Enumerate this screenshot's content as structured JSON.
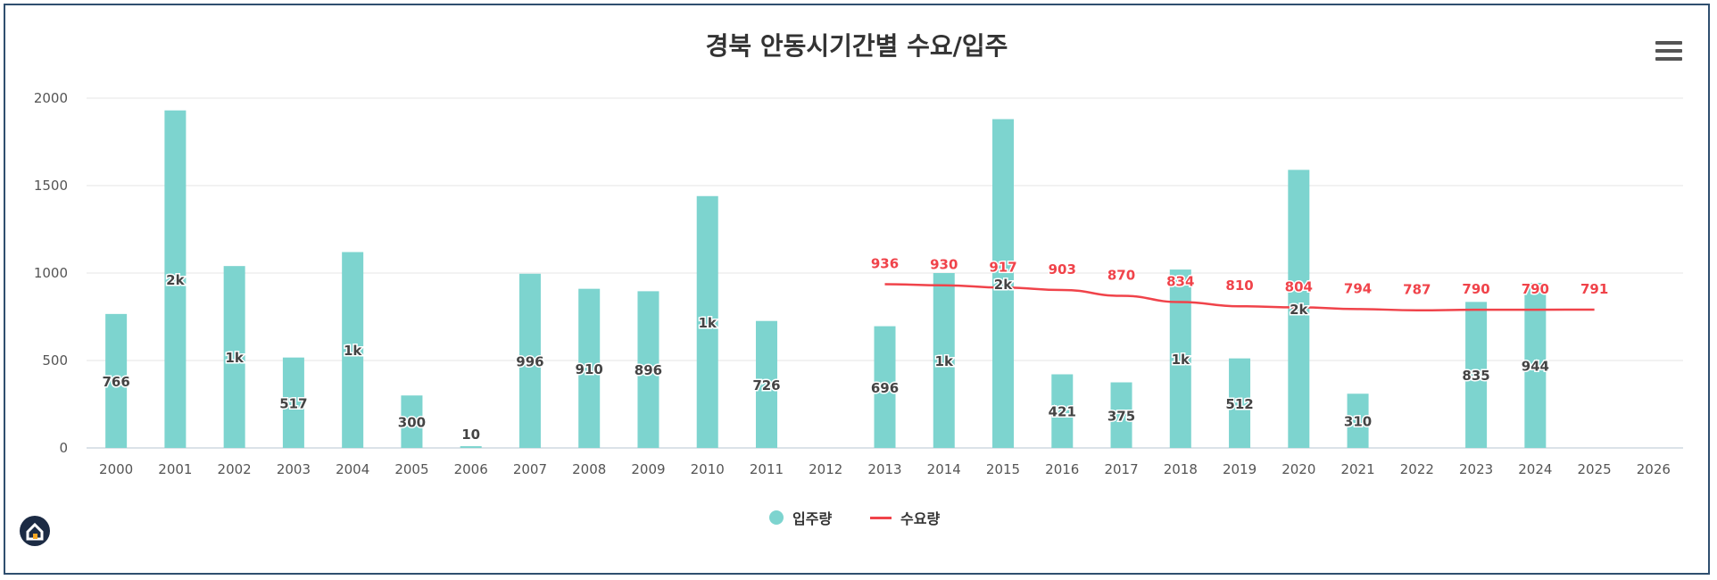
{
  "title": "경북 안동시기간별 수요/입주",
  "icons": {
    "menu": "hamburger-menu-icon",
    "logo": "house-logo-icon"
  },
  "colors": {
    "bar": "#7dd4cf",
    "line": "#f0434a",
    "grid": "#e6e6e6",
    "axis": "#cfd8e0"
  },
  "legend": {
    "supply": "입주량",
    "demand": "수요량"
  },
  "chart_data": {
    "type": "bar",
    "title": "경북 안동시기간별 수요/입주",
    "categories": [
      "2000",
      "2001",
      "2002",
      "2003",
      "2004",
      "2005",
      "2006",
      "2007",
      "2008",
      "2009",
      "2010",
      "2011",
      "2012",
      "2013",
      "2014",
      "2015",
      "2016",
      "2017",
      "2018",
      "2019",
      "2020",
      "2021",
      "2022",
      "2023",
      "2024",
      "2025",
      "2026"
    ],
    "ylim": [
      0,
      2000
    ],
    "yticks": [
      0,
      500,
      1000,
      1500,
      2000
    ],
    "grid": true,
    "legend_position": "bottom",
    "series": [
      {
        "name": "입주량",
        "type": "bar",
        "values": [
          766,
          1930,
          1040,
          517,
          1120,
          300,
          10,
          996,
          910,
          896,
          1440,
          726,
          null,
          696,
          1000,
          1880,
          421,
          375,
          1020,
          512,
          1590,
          310,
          null,
          835,
          944,
          null,
          null
        ],
        "labels": [
          "766",
          "2k",
          "1k",
          "517",
          "1k",
          "300",
          "10",
          "996",
          "910",
          "896",
          "1k",
          "726",
          "",
          "696",
          "1k",
          "2k",
          "421",
          "375",
          "1k",
          "512",
          "2k",
          "310",
          "",
          "835",
          "944",
          "",
          ""
        ]
      },
      {
        "name": "수요량",
        "type": "line",
        "values": [
          null,
          null,
          null,
          null,
          null,
          null,
          null,
          null,
          null,
          null,
          null,
          null,
          null,
          936,
          930,
          917,
          903,
          870,
          834,
          810,
          804,
          794,
          787,
          790,
          790,
          791,
          null
        ],
        "labels": [
          "",
          "",
          "",
          "",
          "",
          "",
          "",
          "",
          "",
          "",
          "",
          "",
          "",
          "936",
          "930",
          "917",
          "903",
          "870",
          "834",
          "810",
          "804",
          "794",
          "787",
          "790",
          "790",
          "791",
          ""
        ]
      }
    ]
  }
}
